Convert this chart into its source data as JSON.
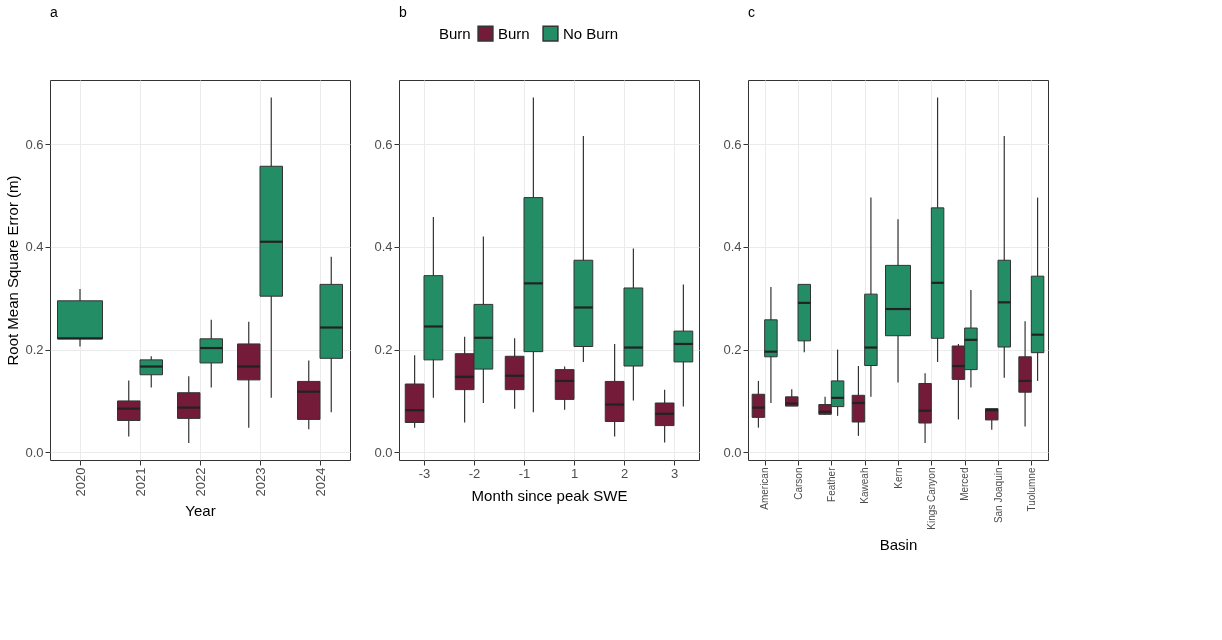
{
  "chart_data": [
    {
      "type": "box",
      "title": "a",
      "xlabel": "Year",
      "ylabel": "Root Mean Square Error (m)",
      "grid": true,
      "categories": [
        "2020",
        "2021",
        "2022",
        "2023",
        "2024"
      ],
      "ylim": [
        -0.015,
        0.725
      ],
      "yticks": [
        {
          "value": 0,
          "label": "0.0"
        },
        {
          "value": 0.2,
          "label": "0.2"
        },
        {
          "value": 0.4,
          "label": "0.4"
        },
        {
          "value": 0.6,
          "label": "0.6"
        }
      ],
      "series": [
        {
          "color": "#741b3a",
          "boxes": [
            null,
            {
              "low": 0.031,
              "q1": 0.062,
              "median": 0.085,
              "q3": 0.1,
              "high": 0.14
            },
            {
              "low": 0.018,
              "q1": 0.066,
              "median": 0.087,
              "q3": 0.116,
              "high": 0.148
            },
            {
              "low": 0.048,
              "q1": 0.141,
              "median": 0.167,
              "q3": 0.211,
              "high": 0.254
            },
            {
              "low": 0.045,
              "q1": 0.064,
              "median": 0.118,
              "q3": 0.138,
              "high": 0.179
            }
          ]
        },
        {
          "color": "#238e66",
          "boxes": [
            {
              "low": 0.206,
              "q1": 0.221,
              "median": 0.222,
              "q3": 0.295,
              "high": 0.318
            },
            {
              "low": 0.126,
              "q1": 0.151,
              "median": 0.167,
              "q3": 0.18,
              "high": 0.187
            },
            {
              "low": 0.126,
              "q1": 0.174,
              "median": 0.203,
              "q3": 0.221,
              "high": 0.258
            },
            {
              "low": 0.106,
              "q1": 0.304,
              "median": 0.41,
              "q3": 0.557,
              "high": 0.691
            },
            {
              "low": 0.078,
              "q1": 0.183,
              "median": 0.243,
              "q3": 0.327,
              "high": 0.381
            }
          ]
        }
      ]
    },
    {
      "type": "box",
      "title": "b",
      "xlabel": "Month since peak SWE",
      "legend": "top",
      "legend_title": "Burn",
      "grid": true,
      "categories": [
        "-3",
        "-2",
        "-1",
        "1",
        "2",
        "3"
      ],
      "ylim": [
        -0.015,
        0.725
      ],
      "yticks": [
        {
          "value": 0,
          "label": "0.0"
        },
        {
          "value": 0.2,
          "label": "0.2"
        },
        {
          "value": 0.4,
          "label": "0.4"
        },
        {
          "value": 0.6,
          "label": "0.6"
        }
      ],
      "series": [
        {
          "name": "Burn",
          "color": "#741b3a",
          "boxes": [
            {
              "low": 0.048,
              "q1": 0.058,
              "median": 0.082,
              "q3": 0.133,
              "high": 0.189
            },
            {
              "low": 0.058,
              "q1": 0.122,
              "median": 0.147,
              "q3": 0.192,
              "high": 0.225
            },
            {
              "low": 0.085,
              "q1": 0.122,
              "median": 0.149,
              "q3": 0.187,
              "high": 0.222
            },
            {
              "low": 0.083,
              "q1": 0.103,
              "median": 0.139,
              "q3": 0.161,
              "high": 0.167
            },
            {
              "low": 0.031,
              "q1": 0.06,
              "median": 0.093,
              "q3": 0.138,
              "high": 0.211
            },
            {
              "low": 0.019,
              "q1": 0.052,
              "median": 0.075,
              "q3": 0.096,
              "high": 0.122
            }
          ]
        },
        {
          "name": "No Burn",
          "color": "#238e66",
          "boxes": [
            {
              "low": 0.106,
              "q1": 0.18,
              "median": 0.245,
              "q3": 0.344,
              "high": 0.458
            },
            {
              "low": 0.096,
              "q1": 0.162,
              "median": 0.223,
              "q3": 0.288,
              "high": 0.42
            },
            {
              "low": 0.078,
              "q1": 0.196,
              "median": 0.329,
              "q3": 0.496,
              "high": 0.691
            },
            {
              "low": 0.176,
              "q1": 0.206,
              "median": 0.282,
              "q3": 0.374,
              "high": 0.616
            },
            {
              "low": 0.101,
              "q1": 0.168,
              "median": 0.204,
              "q3": 0.32,
              "high": 0.397
            },
            {
              "low": 0.089,
              "q1": 0.176,
              "median": 0.211,
              "q3": 0.236,
              "high": 0.327
            }
          ]
        }
      ]
    },
    {
      "type": "box",
      "title": "c",
      "xlabel": "Basin",
      "grid": true,
      "categories": [
        "American",
        "Carson",
        "Feather",
        "Kaweah",
        "Kern",
        "Kings Canyon",
        "Merced",
        "San Joaquin",
        "Tuolumne"
      ],
      "ylim": [
        -0.015,
        0.725
      ],
      "yticks": [
        {
          "value": 0,
          "label": "0.0"
        },
        {
          "value": 0.2,
          "label": "0.2"
        },
        {
          "value": 0.4,
          "label": "0.4"
        },
        {
          "value": 0.6,
          "label": "0.6"
        }
      ],
      "series": [
        {
          "color": "#741b3a",
          "boxes": [
            {
              "low": 0.048,
              "q1": 0.068,
              "median": 0.087,
              "q3": 0.113,
              "high": 0.139
            },
            {
              "low": 0.09,
              "q1": 0.09,
              "median": 0.095,
              "q3": 0.108,
              "high": 0.123
            },
            {
              "low": 0.073,
              "q1": 0.074,
              "median": 0.079,
              "q3": 0.093,
              "high": 0.108
            },
            {
              "low": 0.032,
              "q1": 0.059,
              "median": 0.096,
              "q3": 0.111,
              "high": 0.168
            },
            null,
            {
              "low": 0.018,
              "q1": 0.057,
              "median": 0.081,
              "q3": 0.134,
              "high": 0.154
            },
            {
              "low": 0.064,
              "q1": 0.142,
              "median": 0.168,
              "q3": 0.207,
              "high": 0.211
            },
            {
              "low": 0.044,
              "q1": 0.063,
              "median": 0.082,
              "q3": 0.085,
              "high": 0.085
            },
            {
              "low": 0.05,
              "q1": 0.117,
              "median": 0.139,
              "q3": 0.186,
              "high": 0.255
            }
          ]
        },
        {
          "color": "#238e66",
          "boxes": [
            {
              "low": 0.096,
              "q1": 0.186,
              "median": 0.196,
              "q3": 0.258,
              "high": 0.322
            },
            {
              "low": 0.195,
              "q1": 0.217,
              "median": 0.291,
              "q3": 0.327,
              "high": 0.327
            },
            {
              "low": 0.071,
              "q1": 0.089,
              "median": 0.106,
              "q3": 0.139,
              "high": 0.2
            },
            {
              "low": 0.108,
              "q1": 0.169,
              "median": 0.204,
              "q3": 0.308,
              "high": 0.496
            },
            {
              "low": 0.136,
              "q1": 0.227,
              "median": 0.279,
              "q3": 0.364,
              "high": 0.454
            },
            {
              "low": 0.176,
              "q1": 0.222,
              "median": 0.33,
              "q3": 0.476,
              "high": 0.691
            },
            {
              "low": 0.126,
              "q1": 0.161,
              "median": 0.219,
              "q3": 0.242,
              "high": 0.316
            },
            {
              "low": 0.145,
              "q1": 0.205,
              "median": 0.292,
              "q3": 0.374,
              "high": 0.616
            },
            {
              "low": 0.139,
              "q1": 0.194,
              "median": 0.229,
              "q3": 0.343,
              "high": 0.496
            }
          ]
        }
      ]
    }
  ]
}
